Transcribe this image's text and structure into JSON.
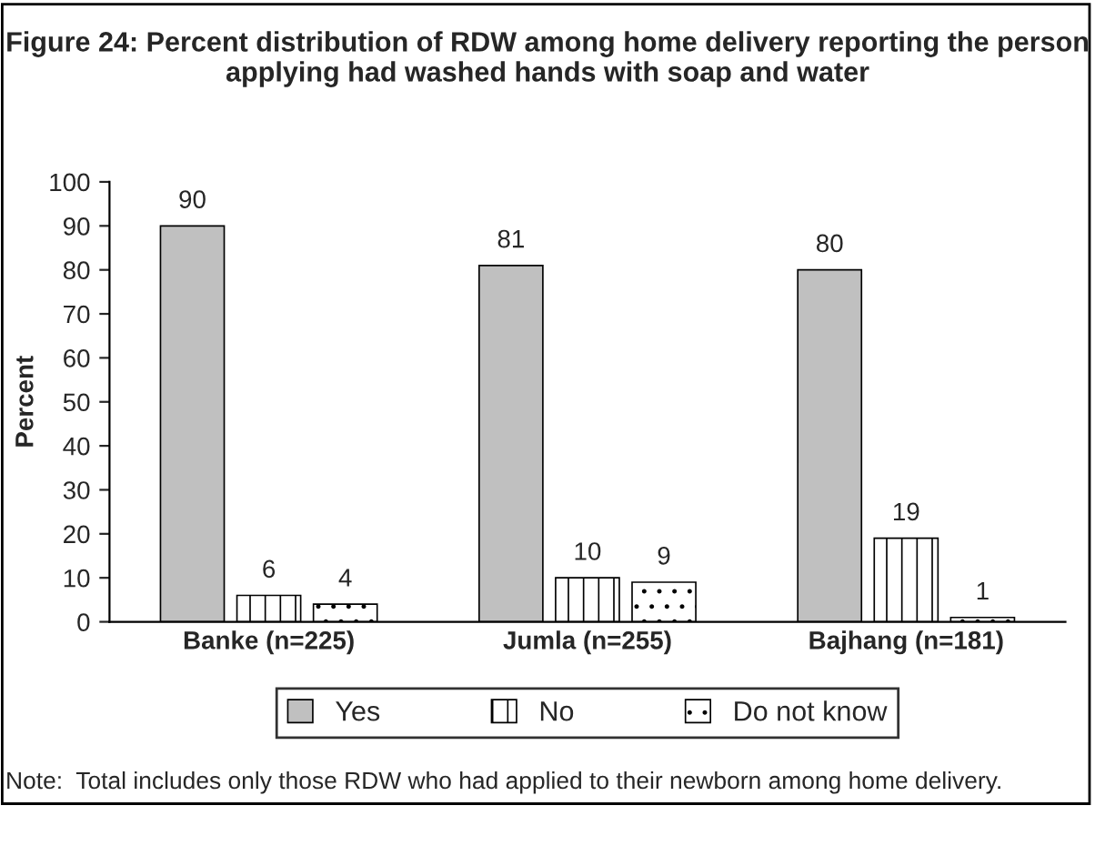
{
  "chart_data": {
    "type": "bar",
    "title": "Figure 24: Percent distribution of RDW among home delivery reporting the person applying had washed hands with soap and water",
    "ylabel": "Percent",
    "categories": [
      "Banke (n=225)",
      "Jumla (n=255)",
      "Bajhang (n=181)"
    ],
    "series": [
      {
        "name": "Yes",
        "color": "#c0c0c0",
        "values": [
          90,
          81,
          80
        ]
      },
      {
        "name": "No",
        "color": "#000000",
        "values": [
          6,
          10,
          19
        ]
      },
      {
        "name": "Do not know",
        "color": "#000000",
        "values": [
          4,
          9,
          1
        ]
      }
    ],
    "ylim": [
      0,
      100
    ],
    "yticks": [
      0,
      10,
      20,
      30,
      40,
      50,
      60,
      70,
      80,
      90,
      100
    ],
    "data_labels": true,
    "grid": false,
    "legend": "bottom",
    "annotations": [
      "Note:  Total includes only those RDW who had applied to their newborn among home delivery."
    ]
  }
}
